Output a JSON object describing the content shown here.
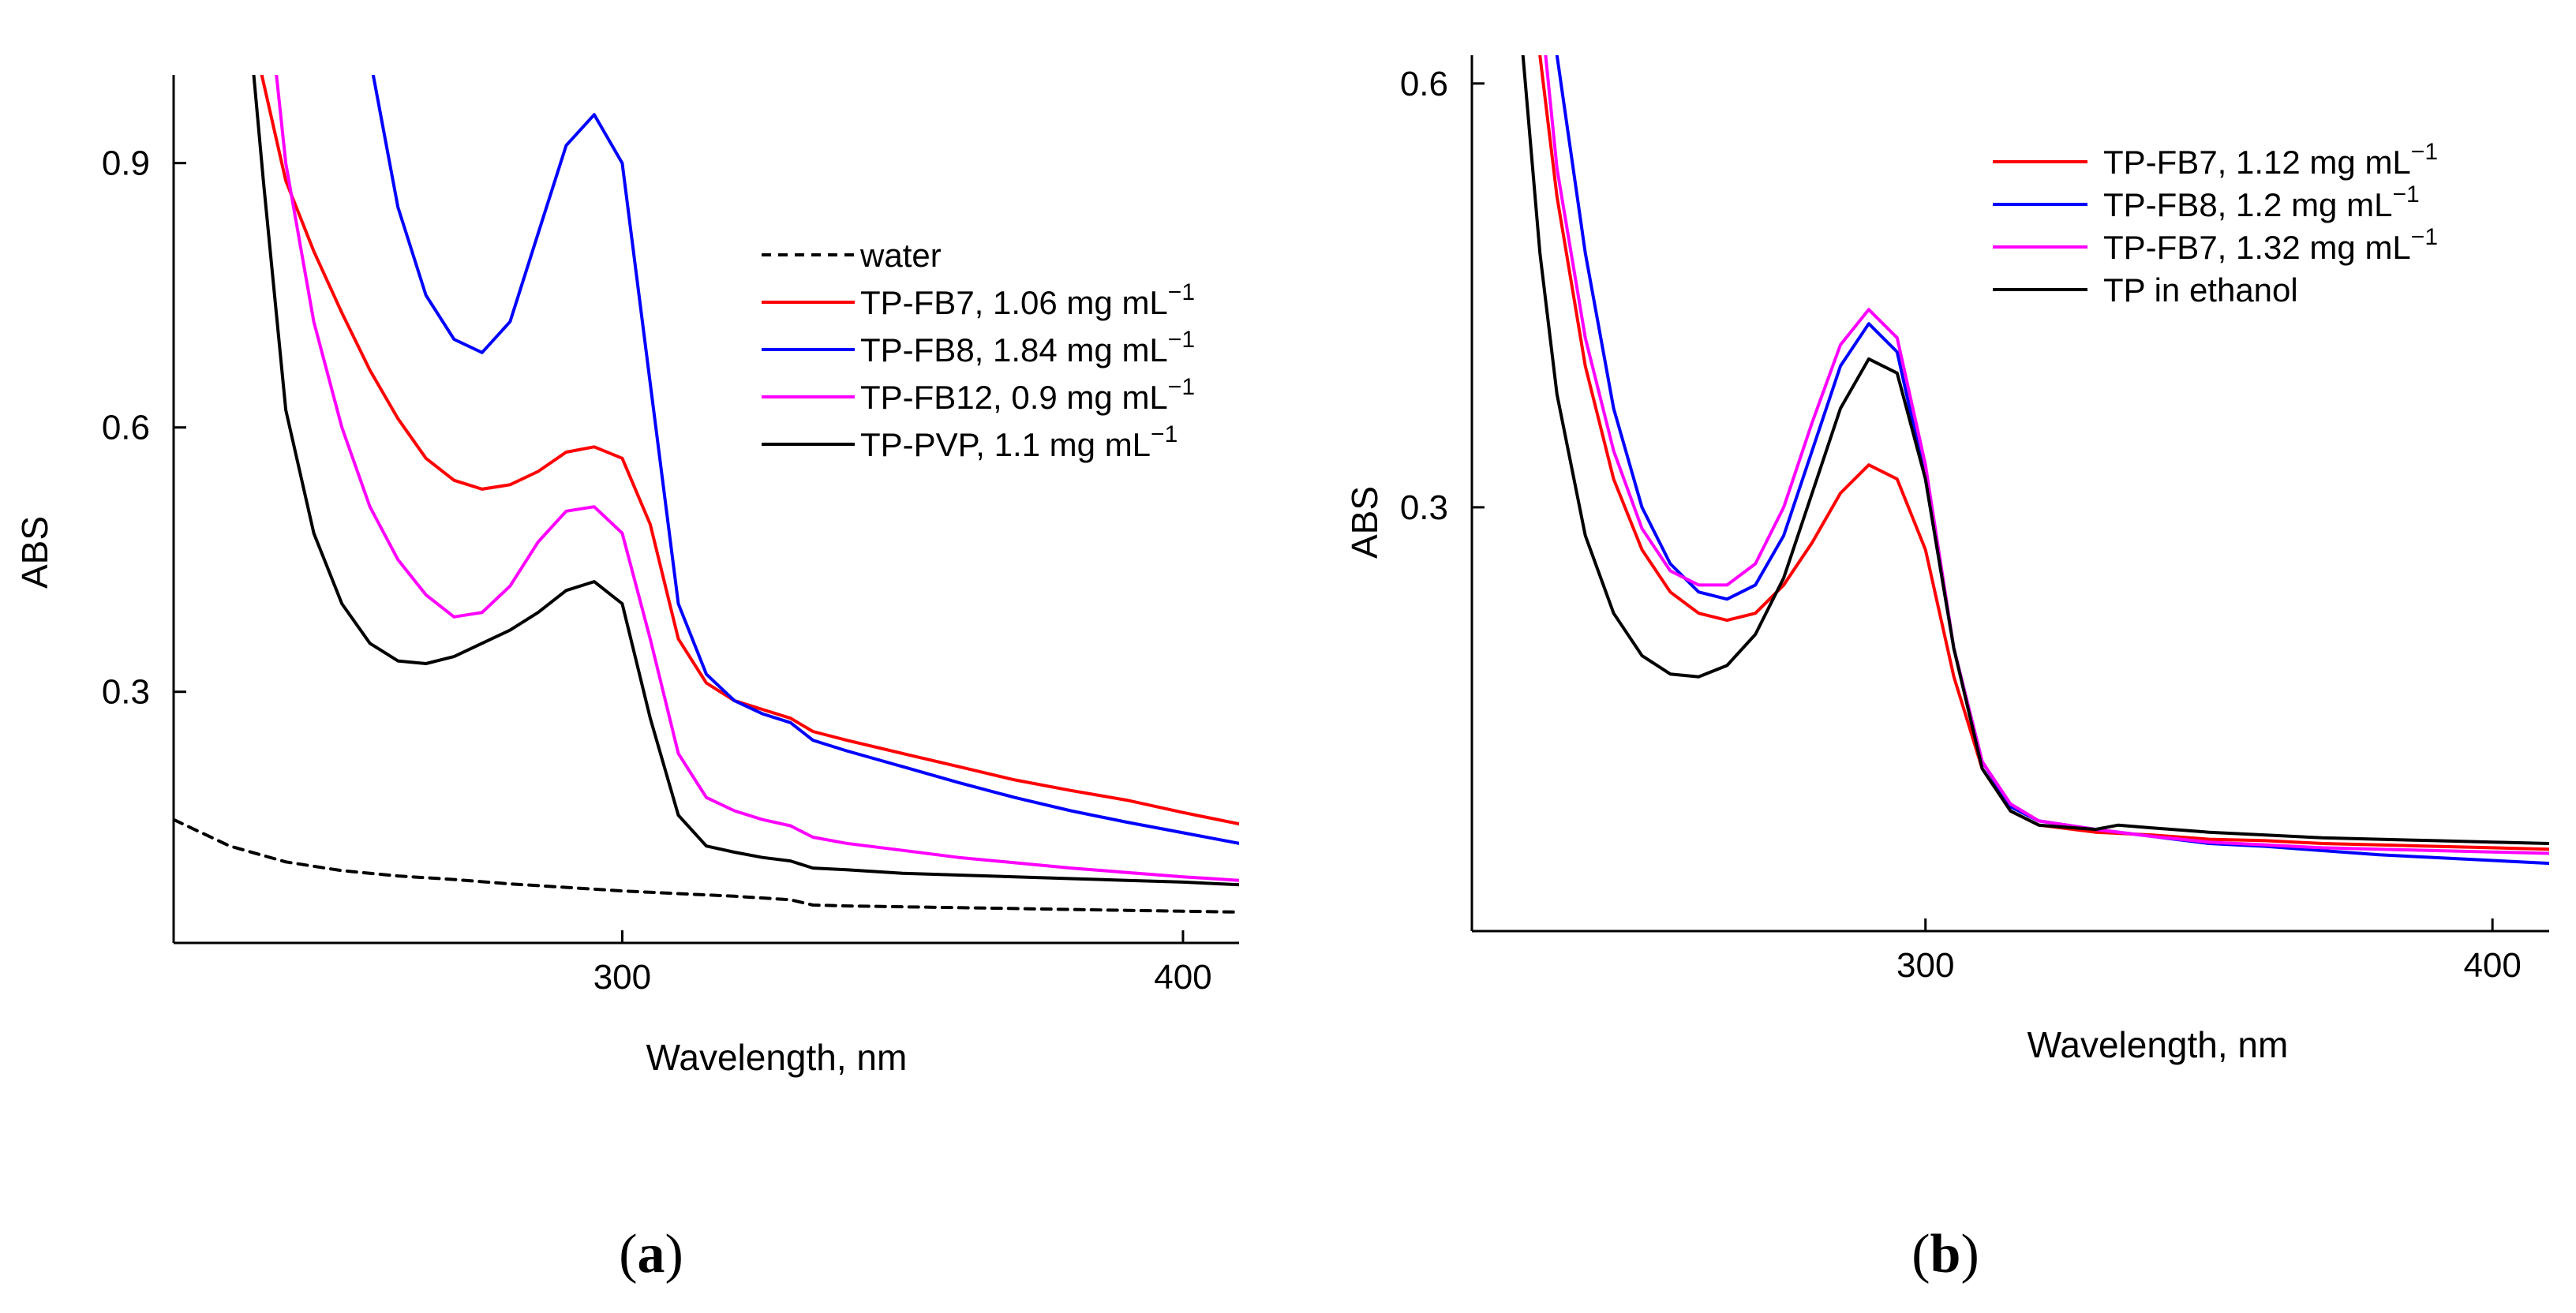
{
  "colors": {
    "red": "#ff0000",
    "blue": "#0000ff",
    "magenta": "#ff00ff",
    "black": "#000000"
  },
  "chart_data": [
    {
      "id": "a",
      "panel_label": "a",
      "type": "line",
      "xlabel": "Wavelength, nm",
      "ylabel": "ABS",
      "xlim": [
        220,
        410
      ],
      "ylim": [
        0.015,
        1.0
      ],
      "xticks": [
        300,
        400
      ],
      "yticks": [
        0.3,
        0.6,
        0.9
      ],
      "xtick_labels": [
        "300",
        "400"
      ],
      "ytick_labels": [
        "0.3",
        "0.6",
        "0.9"
      ],
      "legend_position": "center-right",
      "series": [
        {
          "name": "water",
          "label": "water",
          "color": "#000000",
          "dash": true,
          "x": [
            220,
            230,
            240,
            250,
            260,
            270,
            280,
            290,
            300,
            310,
            320,
            330,
            334,
            340,
            350,
            360,
            370,
            380,
            390,
            400,
            410
          ],
          "y": [
            0.155,
            0.125,
            0.107,
            0.097,
            0.091,
            0.087,
            0.082,
            0.078,
            0.074,
            0.071,
            0.068,
            0.064,
            0.058,
            0.057,
            0.056,
            0.055,
            0.054,
            0.053,
            0.052,
            0.051,
            0.05
          ]
        },
        {
          "name": "TP-FB7",
          "label_main": "TP-FB7, 1.06 mg mL",
          "sup": "−1",
          "color": "#ff0000",
          "x": [
            235,
            240,
            245,
            250,
            255,
            260,
            265,
            270,
            275,
            280,
            285,
            290,
            295,
            300,
            305,
            310,
            315,
            320,
            325,
            330,
            334,
            340,
            350,
            360,
            370,
            380,
            390,
            400,
            410
          ],
          "y": [
            1.02,
            0.88,
            0.8,
            0.73,
            0.665,
            0.61,
            0.565,
            0.54,
            0.53,
            0.535,
            0.55,
            0.572,
            0.578,
            0.565,
            0.49,
            0.36,
            0.31,
            0.29,
            0.28,
            0.27,
            0.255,
            0.245,
            0.23,
            0.215,
            0.2,
            0.188,
            0.177,
            0.163,
            0.15
          ]
        },
        {
          "name": "TP-FB8",
          "label_main": "TP-FB8, 1.84 mg mL",
          "sup": "−1",
          "color": "#0000ff",
          "x": [
            255,
            260,
            265,
            270,
            275,
            280,
            285,
            290,
            295,
            300,
            305,
            310,
            315,
            320,
            325,
            330,
            334,
            340,
            350,
            360,
            370,
            380,
            390,
            400,
            410
          ],
          "y": [
            1.02,
            0.85,
            0.75,
            0.7,
            0.685,
            0.72,
            0.82,
            0.92,
            0.955,
            0.9,
            0.65,
            0.4,
            0.32,
            0.29,
            0.275,
            0.265,
            0.245,
            0.233,
            0.215,
            0.197,
            0.18,
            0.165,
            0.152,
            0.14,
            0.128
          ]
        },
        {
          "name": "TP-FB12",
          "label_main": "TP-FB12, 0.9 mg mL",
          "sup": "−1",
          "color": "#ff00ff",
          "x": [
            238,
            240,
            245,
            250,
            255,
            260,
            265,
            270,
            275,
            280,
            285,
            290,
            295,
            300,
            305,
            310,
            315,
            320,
            325,
            330,
            334,
            340,
            350,
            360,
            370,
            380,
            390,
            400,
            410
          ],
          "y": [
            1.02,
            0.9,
            0.72,
            0.6,
            0.51,
            0.45,
            0.41,
            0.385,
            0.39,
            0.42,
            0.47,
            0.505,
            0.51,
            0.48,
            0.36,
            0.23,
            0.18,
            0.165,
            0.155,
            0.148,
            0.135,
            0.128,
            0.12,
            0.112,
            0.106,
            0.1,
            0.095,
            0.09,
            0.086
          ]
        },
        {
          "name": "TP-PVP",
          "label_main": "TP-PVP, 1.1 mg mL",
          "sup": "−1",
          "color": "#000000",
          "x": [
            234,
            236,
            240,
            245,
            250,
            255,
            260,
            265,
            270,
            275,
            280,
            285,
            290,
            295,
            300,
            305,
            310,
            315,
            320,
            325,
            330,
            334,
            340,
            350,
            360,
            370,
            380,
            390,
            400,
            410
          ],
          "y": [
            1.02,
            0.88,
            0.62,
            0.48,
            0.4,
            0.355,
            0.335,
            0.332,
            0.34,
            0.355,
            0.37,
            0.39,
            0.415,
            0.425,
            0.4,
            0.27,
            0.16,
            0.125,
            0.118,
            0.112,
            0.108,
            0.1,
            0.098,
            0.094,
            0.092,
            0.09,
            0.088,
            0.086,
            0.084,
            0.081
          ]
        }
      ]
    },
    {
      "id": "b",
      "panel_label": "b",
      "type": "line",
      "xlabel": "Wavelength, nm",
      "ylabel": "ABS",
      "xlim": [
        220,
        410
      ],
      "ylim": [
        0.0,
        0.62
      ],
      "xticks": [
        300,
        400
      ],
      "yticks": [
        0.3,
        0.6
      ],
      "xtick_labels": [
        "300",
        "400"
      ],
      "ytick_labels": [
        "0.3",
        "0.6"
      ],
      "legend_position": "top-right",
      "series": [
        {
          "name": "TP-FB7",
          "label_main": "TP-FB7, 1.12 mg mL",
          "sup": "−1",
          "color": "#ff0000",
          "x": [
            232,
            235,
            240,
            245,
            250,
            255,
            260,
            265,
            270,
            275,
            280,
            285,
            290,
            295,
            300,
            305,
            310,
            315,
            320,
            330,
            340,
            350,
            360,
            370,
            380,
            390,
            400,
            410
          ],
          "y": [
            0.62,
            0.52,
            0.4,
            0.32,
            0.27,
            0.24,
            0.225,
            0.22,
            0.225,
            0.245,
            0.275,
            0.31,
            0.33,
            0.32,
            0.27,
            0.18,
            0.115,
            0.085,
            0.075,
            0.07,
            0.068,
            0.065,
            0.064,
            0.062,
            0.061,
            0.06,
            0.059,
            0.058
          ]
        },
        {
          "name": "TP-FB8",
          "label_main": "TP-FB8, 1.2 mg mL",
          "sup": "−1",
          "color": "#0000ff",
          "x": [
            235,
            240,
            245,
            250,
            255,
            260,
            265,
            270,
            275,
            280,
            285,
            290,
            295,
            300,
            305,
            310,
            315,
            320,
            330,
            340,
            350,
            360,
            370,
            380,
            390,
            400,
            410
          ],
          "y": [
            0.62,
            0.48,
            0.37,
            0.3,
            0.26,
            0.24,
            0.235,
            0.245,
            0.28,
            0.34,
            0.4,
            0.43,
            0.41,
            0.32,
            0.2,
            0.12,
            0.088,
            0.078,
            0.072,
            0.067,
            0.062,
            0.06,
            0.057,
            0.054,
            0.052,
            0.05,
            0.048
          ]
        },
        {
          "name": "TP-FB7",
          "label_main": "TP-FB7, 1.32 mg mL",
          "sup": "−1",
          "color": "#ff00ff",
          "x": [
            233,
            235,
            240,
            245,
            250,
            255,
            260,
            265,
            270,
            275,
            280,
            285,
            290,
            295,
            300,
            305,
            310,
            315,
            320,
            330,
            340,
            350,
            360,
            370,
            380,
            390,
            400,
            410
          ],
          "y": [
            0.62,
            0.54,
            0.42,
            0.34,
            0.285,
            0.255,
            0.245,
            0.245,
            0.26,
            0.3,
            0.36,
            0.415,
            0.44,
            0.42,
            0.33,
            0.2,
            0.12,
            0.09,
            0.078,
            0.072,
            0.067,
            0.063,
            0.061,
            0.059,
            0.058,
            0.057,
            0.056,
            0.055
          ]
        },
        {
          "name": "TP in ethanol",
          "label_main": "TP in ethanol",
          "sup": "",
          "color": "#000000",
          "x": [
            229,
            232,
            235,
            240,
            245,
            250,
            255,
            260,
            265,
            270,
            275,
            280,
            285,
            290,
            295,
            300,
            305,
            310,
            315,
            320,
            330,
            334,
            340,
            350,
            360,
            370,
            380,
            390,
            400,
            410
          ],
          "y": [
            0.62,
            0.48,
            0.38,
            0.28,
            0.225,
            0.195,
            0.182,
            0.18,
            0.188,
            0.21,
            0.25,
            0.31,
            0.37,
            0.405,
            0.395,
            0.32,
            0.2,
            0.115,
            0.085,
            0.075,
            0.072,
            0.075,
            0.073,
            0.07,
            0.068,
            0.066,
            0.065,
            0.064,
            0.063,
            0.062
          ]
        }
      ]
    }
  ]
}
